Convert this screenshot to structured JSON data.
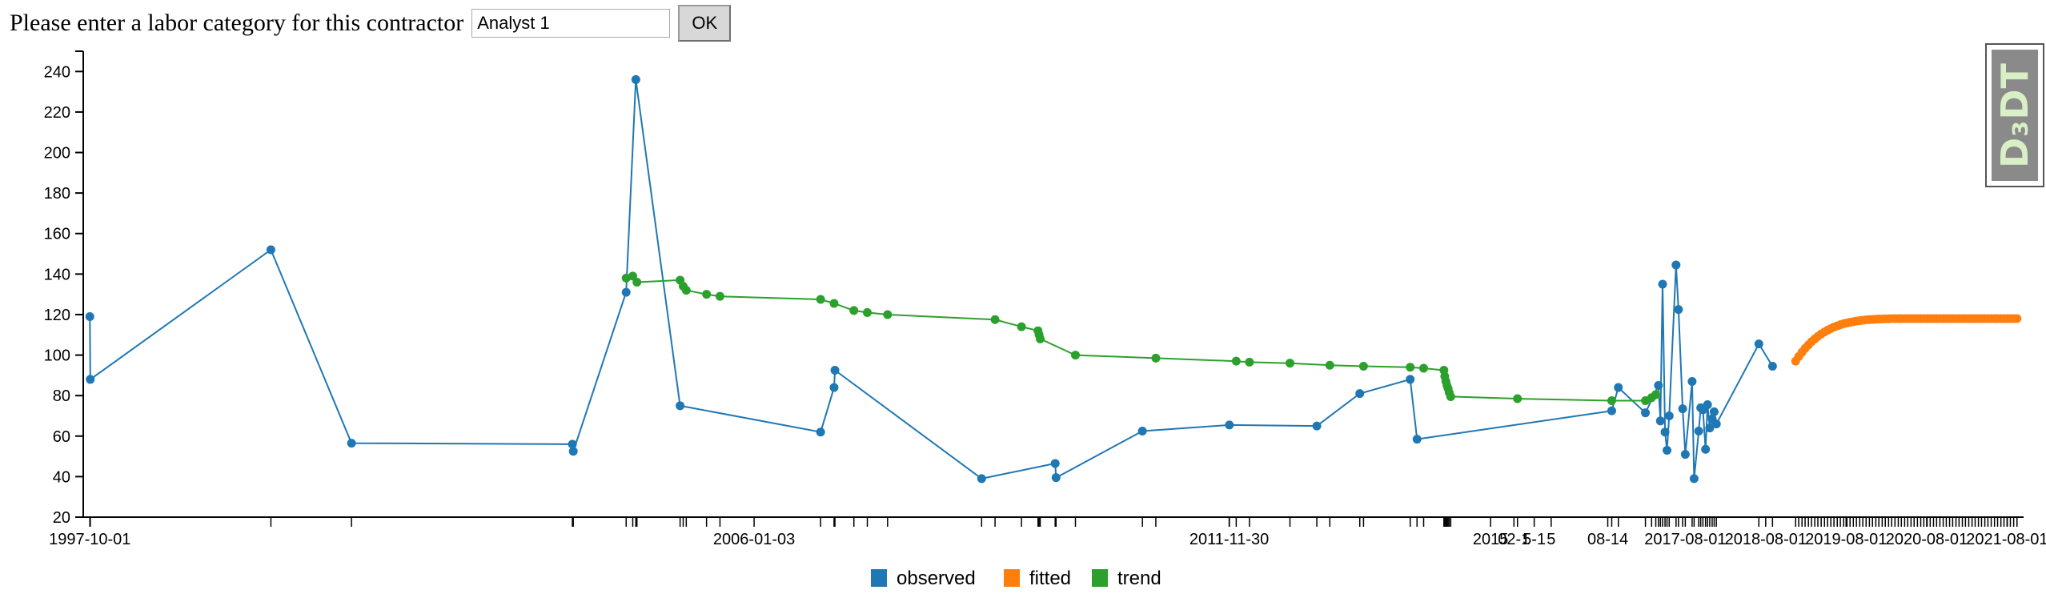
{
  "form": {
    "label": "Please enter a labor category for this contractor",
    "input_value": "Analyst 1",
    "button_label": "OK"
  },
  "badge": {
    "text": "D₃DT"
  },
  "chart_data": {
    "type": "line",
    "x_axis": {
      "kind": "date",
      "range": [
        "1997-09-01",
        "2021-10-15"
      ]
    },
    "y_axis": {
      "range": [
        20,
        250
      ],
      "ticks": [
        20,
        40,
        60,
        80,
        100,
        120,
        140,
        160,
        180,
        200,
        220,
        240
      ]
    },
    "x_tick_labels": [
      {
        "date": "1997-10-01",
        "label": "1997-10-01"
      },
      {
        "date": "2006-01-03",
        "label": "2006-01-03"
      },
      {
        "date": "2011-11-30",
        "label": "2011-11-30"
      },
      {
        "date": "2015-03-01",
        "label": "2015"
      },
      {
        "date": "2015-06-15",
        "label": "02-1"
      },
      {
        "date": "2015-09-15",
        "label": "5-1"
      },
      {
        "date": "2015-12-01",
        "label": "5"
      },
      {
        "date": "2016-08-14",
        "label": "08-14"
      },
      {
        "date": "2017-08-01",
        "label": "2017-08-01"
      },
      {
        "date": "2018-08-01",
        "label": "2018-08-01"
      },
      {
        "date": "2019-08-01",
        "label": "2019-08-01"
      },
      {
        "date": "2020-08-01",
        "label": "2020-08-01"
      },
      {
        "date": "2021-08-01",
        "label": "2021-08-01"
      }
    ],
    "legend": {
      "placement": "bottom-center",
      "entries": [
        "observed",
        "fitted",
        "trend"
      ]
    },
    "colors": {
      "observed": "#1f77b4",
      "fitted": "#ff7f0e",
      "trend": "#2ca02c"
    },
    "series": [
      {
        "name": "observed",
        "color": "#1f77b4",
        "points": [
          [
            "1997-10-01",
            119
          ],
          [
            "1997-10-03",
            88
          ],
          [
            "2000-01-01",
            152
          ],
          [
            "2001-01-01",
            56.5
          ],
          [
            "2003-10-01",
            56
          ],
          [
            "2003-10-05",
            52.5
          ],
          [
            "2004-06-01",
            131
          ],
          [
            "2004-07-15",
            236
          ],
          [
            "2005-02-01",
            75
          ],
          [
            "2006-11-01",
            62
          ],
          [
            "2007-01-01",
            84
          ],
          [
            "2007-01-05",
            92.5
          ],
          [
            "2008-11-01",
            39
          ],
          [
            "2009-10-01",
            46.5
          ],
          [
            "2009-10-05",
            39.5
          ],
          [
            "2010-11-01",
            62.5
          ],
          [
            "2011-12-01",
            65.5
          ],
          [
            "2013-01-01",
            65
          ],
          [
            "2013-07-15",
            81
          ],
          [
            "2014-03-01",
            88
          ],
          [
            "2014-04-01",
            58.5
          ],
          [
            "2016-09-01",
            72.5
          ],
          [
            "2016-10-01",
            84
          ],
          [
            "2017-02-01",
            71.5
          ],
          [
            "2017-04-01",
            85
          ],
          [
            "2017-04-10",
            67.5
          ],
          [
            "2017-04-20",
            135
          ],
          [
            "2017-05-01",
            62
          ],
          [
            "2017-05-10",
            53
          ],
          [
            "2017-05-20",
            70
          ],
          [
            "2017-06-20",
            144.5
          ],
          [
            "2017-07-01",
            122.5
          ],
          [
            "2017-07-20",
            73.5
          ],
          [
            "2017-08-01",
            51
          ],
          [
            "2017-09-01",
            87
          ],
          [
            "2017-09-10",
            39
          ],
          [
            "2017-10-01",
            62.5
          ],
          [
            "2017-10-10",
            74
          ],
          [
            "2017-10-20",
            73
          ],
          [
            "2017-11-01",
            53.5
          ],
          [
            "2017-11-10",
            75.5
          ],
          [
            "2017-11-20",
            64
          ],
          [
            "2017-12-01",
            68.5
          ],
          [
            "2017-12-10",
            72
          ],
          [
            "2017-12-20",
            66
          ],
          [
            "2018-07-01",
            105.5
          ],
          [
            "2018-09-01",
            94.5
          ]
        ]
      },
      {
        "name": "fitted",
        "color": "#ff7f0e",
        "start_date": "2018-12-15",
        "end_date": "2021-09-15",
        "values": [
          97,
          99.3,
          101.4,
          103.3,
          105,
          106.6,
          108,
          109.2,
          110.4,
          111.4,
          112.3,
          113.1,
          113.8,
          114.4,
          115,
          115.5,
          115.9,
          116.2,
          116.5,
          116.8,
          117,
          117.2,
          117.4,
          117.5,
          117.6,
          117.7,
          117.8,
          117.8,
          117.9,
          117.9,
          118,
          118,
          118,
          118,
          118,
          118,
          118,
          118,
          118,
          118,
          118,
          118,
          118,
          118,
          118,
          118,
          118,
          118,
          118,
          118,
          118,
          118,
          118,
          118,
          118,
          118,
          118,
          118,
          118,
          118,
          118,
          118,
          118,
          118,
          118,
          118,
          118,
          118,
          118,
          118
        ]
      },
      {
        "name": "trend",
        "color": "#2ca02c",
        "points": [
          [
            "2004-06-01",
            138
          ],
          [
            "2004-07-01",
            139
          ],
          [
            "2004-07-20",
            136
          ],
          [
            "2005-02-01",
            137
          ],
          [
            "2005-02-15",
            134
          ],
          [
            "2005-03-01",
            132
          ],
          [
            "2005-06-01",
            130
          ],
          [
            "2005-08-01",
            129
          ],
          [
            "2006-11-01",
            127.5
          ],
          [
            "2007-01-01",
            125.5
          ],
          [
            "2007-04-01",
            122
          ],
          [
            "2007-06-01",
            121
          ],
          [
            "2007-09-01",
            120
          ],
          [
            "2009-01-01",
            117.5
          ],
          [
            "2009-05-01",
            114
          ],
          [
            "2009-07-15",
            112
          ],
          [
            "2009-07-20",
            110
          ],
          [
            "2009-07-25",
            108
          ],
          [
            "2010-01-01",
            100
          ],
          [
            "2011-01-01",
            98.5
          ],
          [
            "2012-01-01",
            97
          ],
          [
            "2012-03-01",
            96.5
          ],
          [
            "2012-09-01",
            96
          ],
          [
            "2013-03-01",
            95
          ],
          [
            "2013-08-01",
            94.5
          ],
          [
            "2014-03-01",
            94
          ],
          [
            "2014-05-01",
            93.5
          ],
          [
            "2014-08-01",
            92.5
          ],
          [
            "2014-08-05",
            89.5
          ],
          [
            "2014-08-10",
            87
          ],
          [
            "2014-08-15",
            85
          ],
          [
            "2014-08-20",
            83.5
          ],
          [
            "2014-08-25",
            81.5
          ],
          [
            "2014-09-01",
            79.5
          ],
          [
            "2015-07-01",
            78.5
          ],
          [
            "2016-09-01",
            77.5
          ],
          [
            "2017-02-01",
            77.5
          ],
          [
            "2017-03-01",
            79
          ],
          [
            "2017-03-20",
            80.5
          ]
        ]
      }
    ]
  }
}
